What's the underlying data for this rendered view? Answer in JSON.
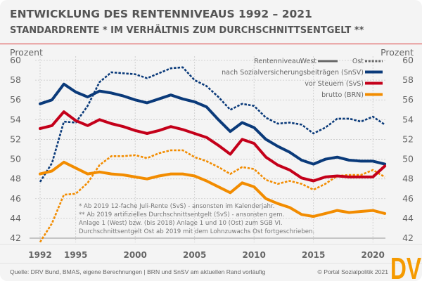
{
  "header": {
    "title": "ENTWICKLUNG DES RENTENNIVEAUS 1992 – 2021",
    "subtitle": "STANDARDRENTE * IM VERHÄLTNIS ZUM DURCHSCHNITTSENTGELT **"
  },
  "chart_data": {
    "type": "line",
    "ylabel_left": "Prozent",
    "ylabel_right": "Prozent",
    "ylim": [
      42,
      60
    ],
    "y_ticks": [
      "42",
      "44",
      "46",
      "48",
      "50",
      "52",
      "54",
      "56",
      "58",
      "60"
    ],
    "x_tick_labels": [
      "1992",
      "1995",
      "2000",
      "2005",
      "2010",
      "2015",
      "2020"
    ],
    "x_ticks": [
      1992,
      1995,
      2000,
      2005,
      2010,
      2015,
      2020
    ],
    "grid": true,
    "legend_position": "top-right",
    "legend": {
      "title": "Rentenniveau:",
      "west_label": "West",
      "ost_label": "Ost",
      "entries": [
        "nach Sozialversicherungsbeiträgen (SnSV)",
        "vor Steuern (SvS)",
        "brutto (BRN)"
      ]
    },
    "x": [
      1992,
      1993,
      1994,
      1995,
      1996,
      1997,
      1998,
      1999,
      2000,
      2001,
      2002,
      2003,
      2004,
      2005,
      2006,
      2007,
      2008,
      2009,
      2010,
      2011,
      2012,
      2013,
      2014,
      2015,
      2016,
      2017,
      2018,
      2019,
      2020,
      2021
    ],
    "series": [
      {
        "name": "nach Sozialversicherungsbeiträgen (SnSV) West",
        "color": "#0a3a7a",
        "dash": false,
        "values": [
          55.6,
          56.0,
          57.6,
          56.8,
          56.3,
          56.9,
          56.7,
          56.4,
          56.0,
          55.7,
          56.1,
          56.5,
          56.1,
          55.8,
          55.3,
          54.0,
          52.8,
          53.7,
          53.2,
          52.0,
          51.3,
          50.7,
          49.9,
          49.5,
          50.0,
          50.2,
          49.9,
          49.8,
          49.8,
          49.5
        ]
      },
      {
        "name": "vor Steuern (SvS) West",
        "color": "#c4001a",
        "dash": false,
        "values": [
          53.1,
          53.4,
          54.8,
          53.9,
          53.4,
          54.0,
          53.6,
          53.3,
          52.9,
          52.6,
          52.9,
          53.3,
          53.0,
          52.6,
          52.2,
          51.4,
          50.5,
          52.0,
          51.6,
          50.2,
          49.4,
          48.9,
          48.1,
          47.8,
          48.2,
          48.3,
          48.2,
          48.2,
          48.2,
          49.3
        ]
      },
      {
        "name": "brutto (BRN) West",
        "color": "#f28c00",
        "dash": false,
        "values": [
          48.5,
          48.8,
          49.7,
          49.1,
          48.5,
          48.7,
          48.5,
          48.4,
          48.2,
          48.0,
          48.3,
          48.5,
          48.5,
          48.3,
          47.8,
          47.2,
          46.6,
          47.6,
          47.2,
          46.0,
          45.5,
          45.1,
          44.4,
          44.2,
          44.5,
          44.8,
          44.6,
          44.7,
          44.8,
          44.5
        ]
      },
      {
        "name": "nach Sozialversicherungsbeiträgen (SnSV) Ost",
        "color": "#0a3a7a",
        "dash": true,
        "values": [
          47.7,
          49.6,
          53.8,
          53.7,
          55.4,
          57.8,
          58.8,
          58.7,
          58.6,
          58.2,
          58.7,
          59.2,
          59.3,
          58.0,
          57.4,
          56.3,
          55.0,
          55.6,
          55.4,
          54.2,
          53.6,
          53.7,
          53.5,
          52.6,
          53.2,
          54.1,
          54.1,
          53.8,
          54.3,
          53.5
        ]
      },
      {
        "name": "brutto (BRN) Ost",
        "color": "#f28c00",
        "dash": true,
        "values": [
          41.6,
          43.5,
          46.4,
          46.5,
          47.6,
          49.4,
          50.3,
          50.3,
          50.4,
          50.1,
          50.6,
          50.9,
          50.9,
          50.2,
          49.8,
          49.2,
          48.5,
          49.2,
          49.0,
          47.9,
          47.5,
          47.8,
          47.5,
          46.9,
          47.5,
          48.3,
          48.4,
          48.4,
          48.9,
          48.2
        ]
      }
    ]
  },
  "footnotes": [
    "* Ab 2019 12-fache Juli-Rente (SvS) - ansonsten im Kalenderjahr.",
    "** Ab 2019 artifizielles Durchschnittsentgelt (SvS) - ansonsten gem.",
    "Anlage 1 (West) bzw. (bis 2018) Anlage 1 und 10 (Ost) zum SGB VI.",
    "Durchschnittsentgelt Ost ab 2019 mit dem Lohnzuwachs Ost fortgeschrieben."
  ],
  "footer": {
    "source": "Quelle: DRV Bund, BMAS, eigene Berechnungen | BRN und SnSV am aktuellen Rand vorläufig",
    "copyright": "© Portal Sozialpolitik 2021",
    "logo": "DV"
  },
  "colors": {
    "accent_line": "#e06060",
    "logo": "#f59a00"
  }
}
